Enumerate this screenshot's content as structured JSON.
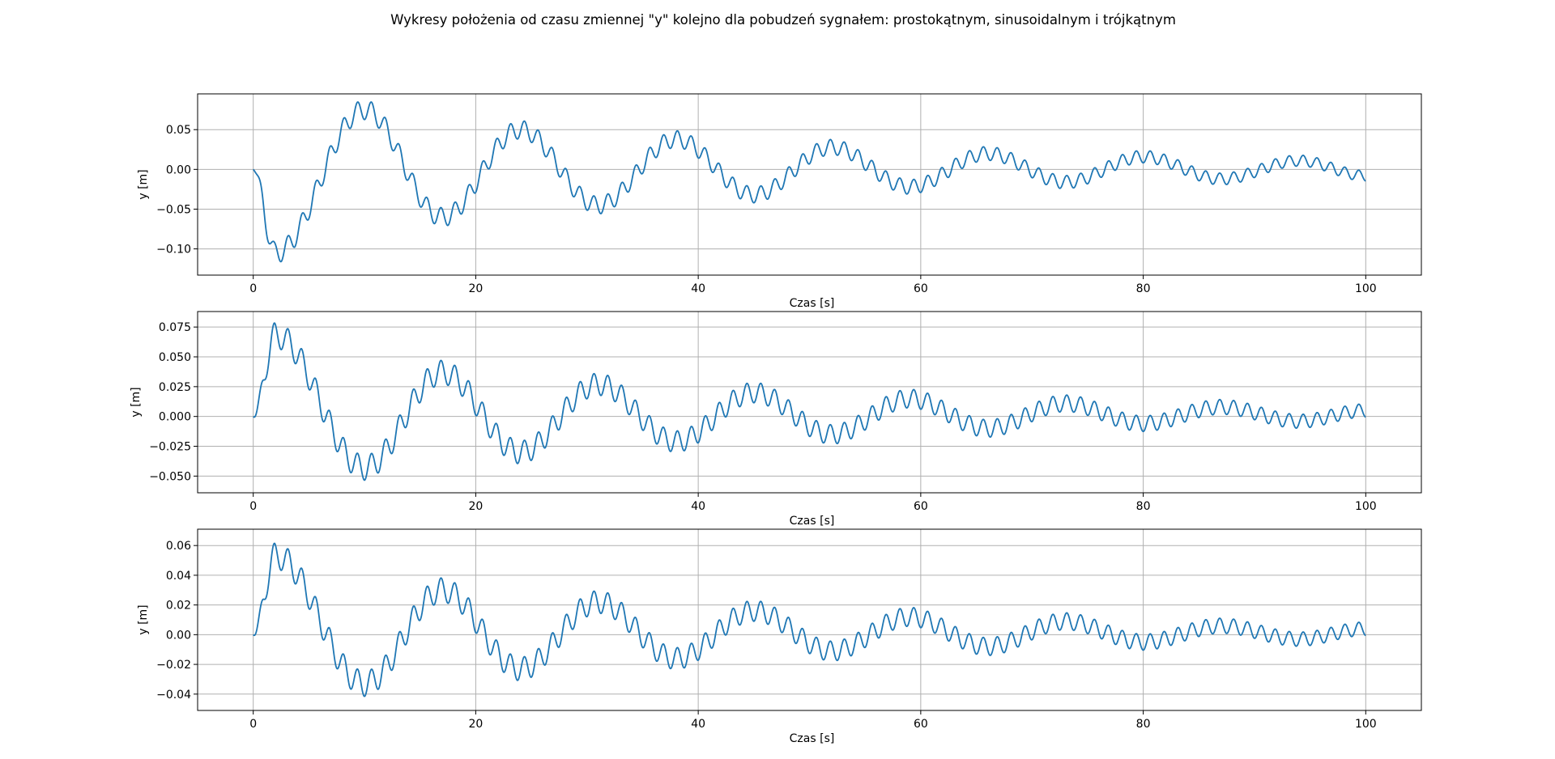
{
  "figure": {
    "suptitle": "Wykresy położenia od czasu zmiennej \"y\" kolejno dla pobudzeń sygnałem: prostokątnym, sinusoidalnym i trójkątnym",
    "line_color": "#1f77b4",
    "grid_color": "#b0b0b0"
  },
  "chart_data": [
    {
      "type": "line",
      "xlabel": "Czas [s]",
      "ylabel": "y [m]",
      "xlim": [
        -5,
        105
      ],
      "ylim": [
        -0.133,
        0.095
      ],
      "xticks": [
        0,
        20,
        40,
        60,
        80,
        100
      ],
      "yticks": [
        -0.1,
        -0.05,
        0.0,
        0.05
      ],
      "ytick_labels": [
        "−0.10",
        "−0.05",
        "0.00",
        "0.05"
      ],
      "grid": true,
      "series": [
        {
          "signal": "prostokątny",
          "t_range": [
            0,
            100
          ],
          "start_value": 0.0,
          "slow_envelope_t": [
            0,
            2,
            10,
            17,
            24,
            31,
            38,
            45,
            52,
            59,
            66,
            73,
            80,
            87,
            94,
            100
          ],
          "slow_envelope_y": [
            0.0,
            -0.105,
            0.075,
            -0.06,
            0.05,
            -0.045,
            0.038,
            -0.032,
            0.028,
            -0.022,
            0.02,
            -0.016,
            0.016,
            -0.012,
            0.011,
            -0.008
          ],
          "fast_oscillation_amplitude": 0.013,
          "fast_oscillation_period": 1.25,
          "peak_value": 0.085,
          "min_value": -0.123
        }
      ]
    },
    {
      "type": "line",
      "xlabel": "Czas [s]",
      "ylabel": "y [m]",
      "xlim": [
        -5,
        105
      ],
      "ylim": [
        -0.064,
        0.088
      ],
      "xticks": [
        0,
        20,
        40,
        60,
        80,
        100
      ],
      "yticks": [
        -0.05,
        -0.025,
        0.0,
        0.025,
        0.05,
        0.075
      ],
      "ytick_labels": [
        "−0.050",
        "−0.025",
        "0.000",
        "0.025",
        "0.050",
        "0.075"
      ],
      "grid": true,
      "series": [
        {
          "signal": "sinusoidalny",
          "t_range": [
            0,
            100
          ],
          "start_value": 0.0,
          "slow_envelope_t": [
            0,
            2,
            10,
            17,
            24,
            31,
            38,
            45,
            52,
            59,
            66,
            73,
            80,
            87,
            94,
            100
          ],
          "slow_envelope_y": [
            0.0,
            0.068,
            -0.043,
            0.037,
            -0.03,
            0.027,
            -0.021,
            0.02,
            -0.015,
            0.015,
            -0.01,
            0.011,
            -0.006,
            0.008,
            -0.004,
            0.005
          ],
          "fast_oscillation_amplitude": 0.011,
          "fast_oscillation_period": 1.25,
          "peak_value": 0.081,
          "min_value": -0.057
        }
      ]
    },
    {
      "type": "line",
      "xlabel": "Czas [s]",
      "ylabel": "y [m]",
      "xlim": [
        -5,
        105
      ],
      "ylim": [
        -0.051,
        0.071
      ],
      "xticks": [
        0,
        20,
        40,
        60,
        80,
        100
      ],
      "yticks": [
        -0.04,
        -0.02,
        0.0,
        0.02,
        0.04,
        0.06
      ],
      "ytick_labels": [
        "−0.04",
        "−0.02",
        "0.00",
        "0.02",
        "0.04",
        "0.06"
      ],
      "grid": true,
      "series": [
        {
          "signal": "trójkątny",
          "t_range": [
            0,
            100
          ],
          "start_value": 0.0,
          "slow_envelope_t": [
            0,
            2,
            10,
            17,
            24,
            31,
            38,
            45,
            52,
            59,
            66,
            73,
            80,
            87,
            94,
            100
          ],
          "slow_envelope_y": [
            0.0,
            0.053,
            -0.033,
            0.03,
            -0.023,
            0.022,
            -0.016,
            0.016,
            -0.011,
            0.012,
            -0.008,
            0.009,
            -0.005,
            0.006,
            -0.003,
            0.004
          ],
          "fast_oscillation_amplitude": 0.009,
          "fast_oscillation_period": 1.25,
          "peak_value": 0.064,
          "min_value": -0.045
        }
      ]
    }
  ]
}
